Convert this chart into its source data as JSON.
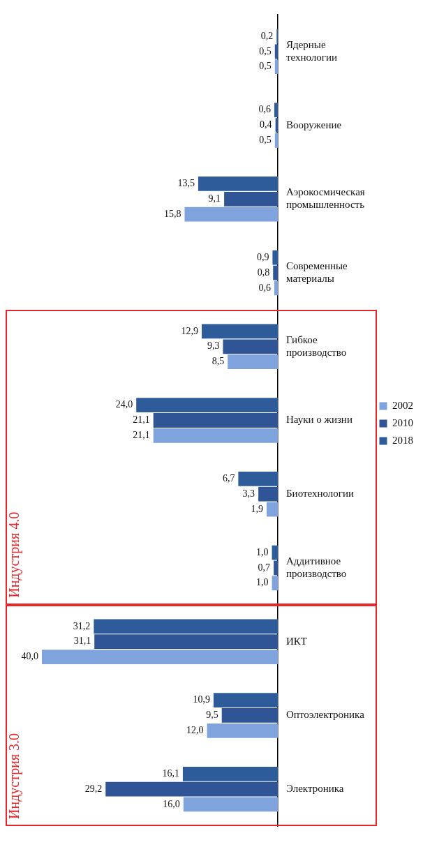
{
  "chart_data": {
    "type": "bar",
    "orientation": "horizontal",
    "categories": [
      "Ядерные технологии",
      "Вооружение",
      "Аэрокосмическая промышленность",
      "Современные материалы",
      "Гибкое производство",
      "Науки о жизни",
      "Биотехнологии",
      "Аддитивное производство",
      "ИКТ",
      "Оптоэлектроника",
      "Электроника"
    ],
    "series": [
      {
        "name": "2018",
        "color": "#2e5c9a",
        "values": [
          0.2,
          0.6,
          13.5,
          0.9,
          12.9,
          24.0,
          6.7,
          1.0,
          31.2,
          10.9,
          16.1
        ],
        "value_labels": [
          "0,2",
          "0,6",
          "13,5",
          "0,9",
          "12,9",
          "24,0",
          "6,7",
          "1,0",
          "31,2",
          "10,9",
          "16,1"
        ]
      },
      {
        "name": "2010",
        "color": "#2f5597",
        "values": [
          0.5,
          0.4,
          9.1,
          0.8,
          9.3,
          21.1,
          3.3,
          0.7,
          31.1,
          9.5,
          29.2
        ],
        "value_labels": [
          "0,5",
          "0,4",
          "9,1",
          "0,8",
          "9,3",
          "21,1",
          "3,3",
          "0,7",
          "31,1",
          "9,5",
          "29,2"
        ]
      },
      {
        "name": "2002",
        "color": "#7fa3dc",
        "values": [
          0.5,
          0.5,
          15.8,
          0.6,
          8.5,
          21.1,
          1.9,
          1.0,
          40.0,
          12.0,
          16.0
        ],
        "value_labels": [
          "0,5",
          "0,5",
          "15,8",
          "0,6",
          "8,5",
          "21,1",
          "1,9",
          "1,0",
          "40,0",
          "12,0",
          "16,0"
        ]
      }
    ],
    "annotations": [
      "Индустрия 4.0",
      "Индустрия 3.0"
    ],
    "legend": "right"
  }
}
